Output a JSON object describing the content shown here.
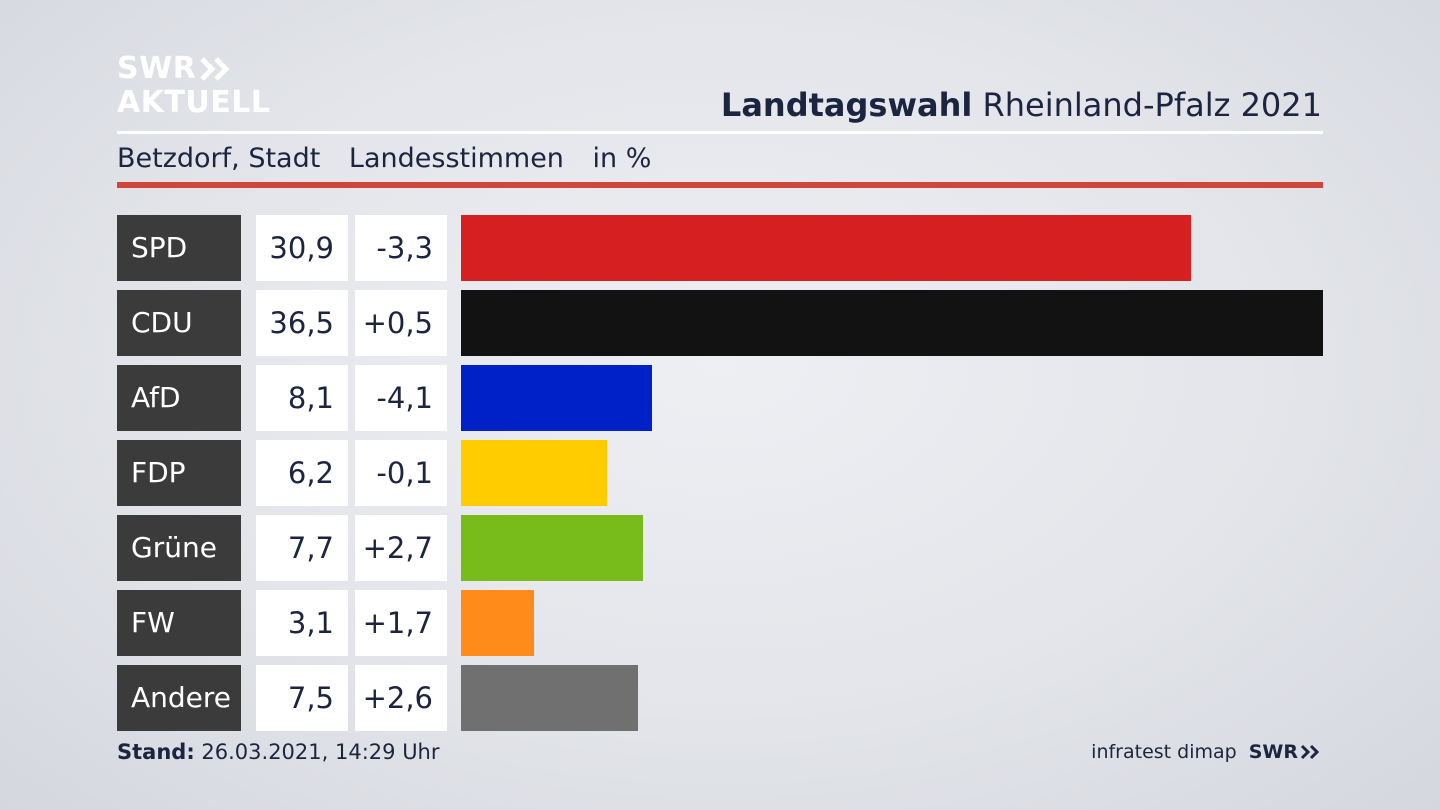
{
  "brand": {
    "logo_line1": "SWR",
    "logo_line2": "AKTUELL"
  },
  "header": {
    "title_bold": "Landtagswahl",
    "title_rest": "Rheinland-Pfalz 2021",
    "location": "Betzdorf, Stadt",
    "measure": "Landesstimmen",
    "unit": "in %"
  },
  "colors": {
    "accent_rule": "#d0463a",
    "label_bg": "#3b3b3b"
  },
  "chart_data": {
    "type": "bar",
    "orientation": "horizontal",
    "categories": [
      "SPD",
      "CDU",
      "AfD",
      "FDP",
      "Grüne",
      "FW",
      "Andere"
    ],
    "values": [
      30.9,
      36.5,
      8.1,
      6.2,
      7.7,
      3.1,
      7.5
    ],
    "value_labels": [
      "30,9",
      "36,5",
      "8,1",
      "6,2",
      "7,7",
      "3,1",
      "7,5"
    ],
    "changes": [
      -3.3,
      0.5,
      -4.1,
      -0.1,
      2.7,
      1.7,
      2.6
    ],
    "change_labels": [
      "-3,3",
      "+0,5",
      "-4,1",
      "-0,1",
      "+2,7",
      "+1,7",
      "+2,6"
    ],
    "colors": [
      "#d61f20",
      "#121212",
      "#0021c8",
      "#ffcc00",
      "#78bc1b",
      "#ff8c1a",
      "#707070"
    ],
    "xlim": [
      0,
      36.5
    ]
  },
  "footer": {
    "stand_label": "Stand:",
    "stand_value": "26.03.2021, 14:29 Uhr",
    "source": "infratest dimap",
    "brand": "SWR"
  }
}
